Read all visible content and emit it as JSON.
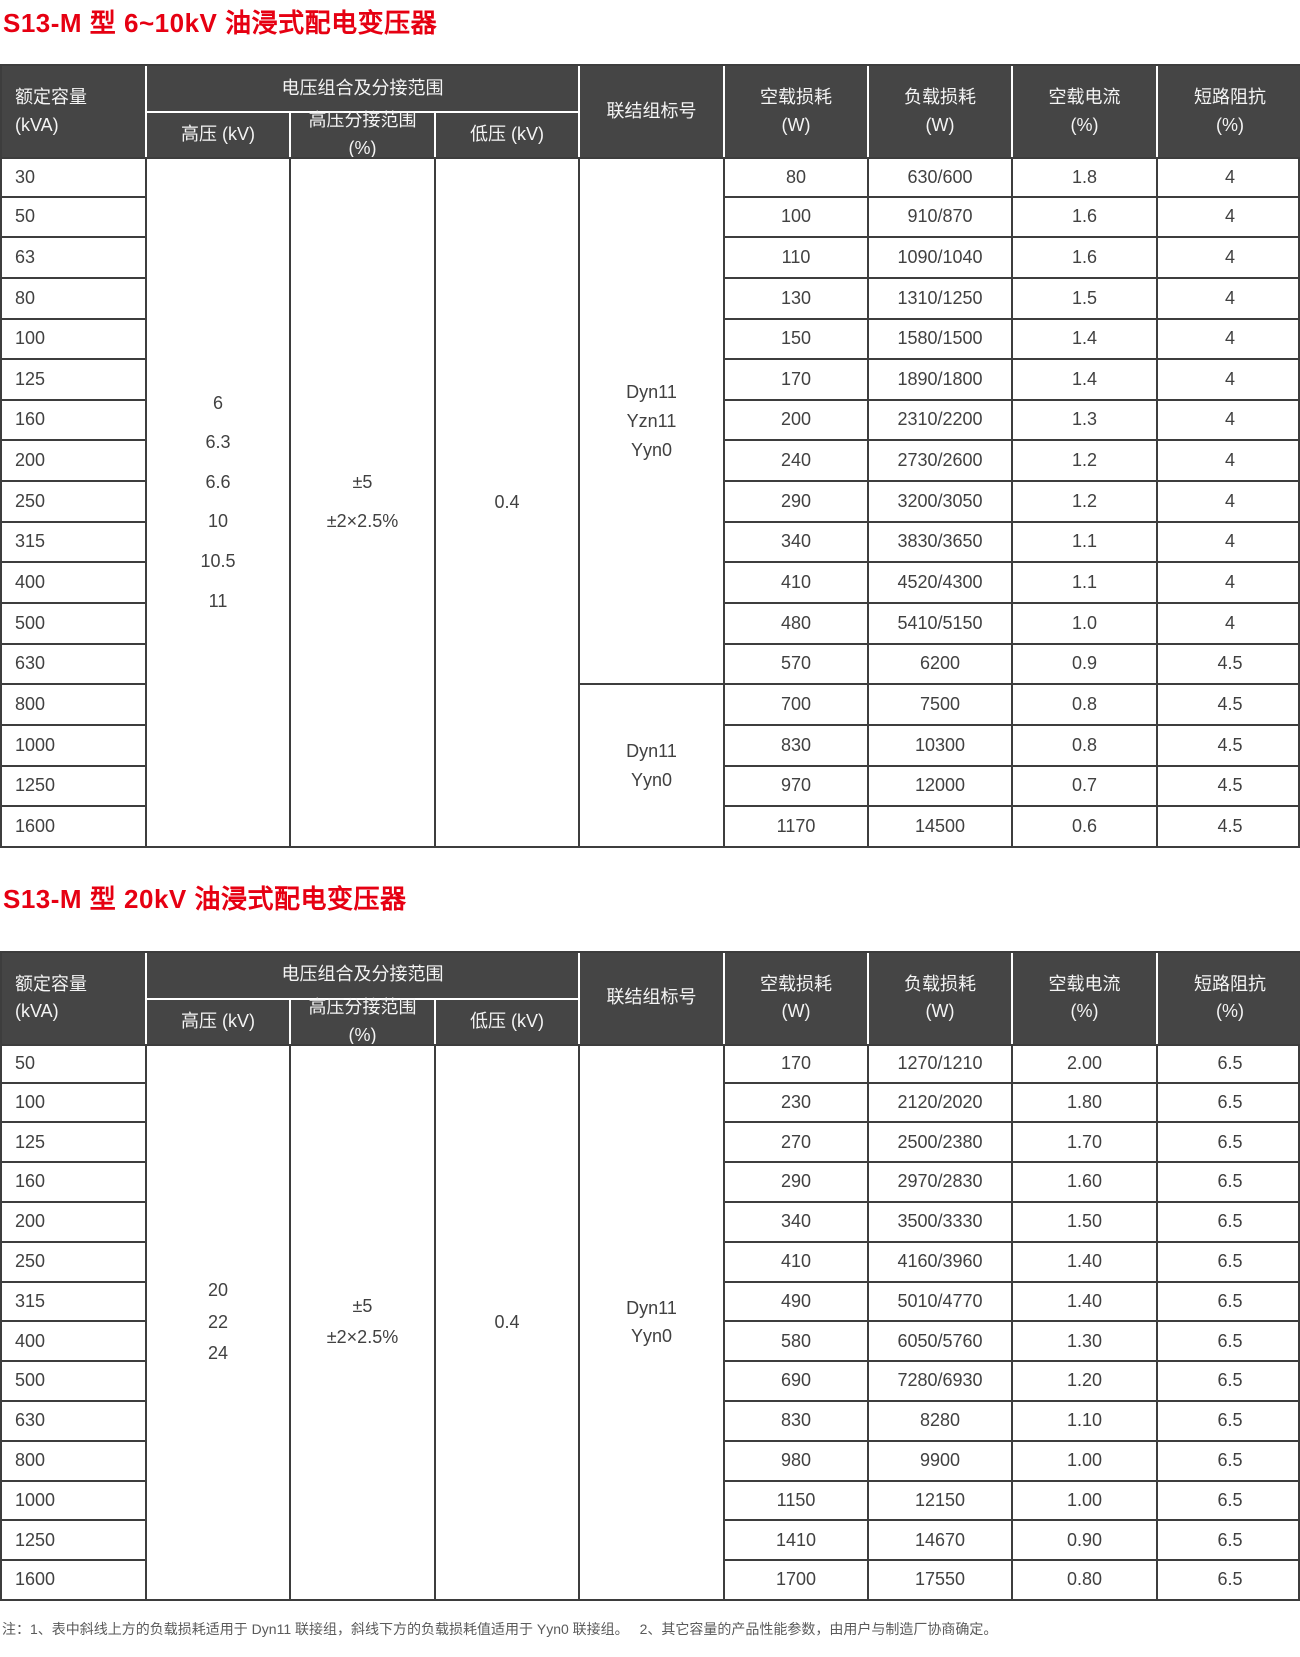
{
  "colors": {
    "title_red": "#e60012",
    "header_bg": "#454545",
    "border_dark": "#3d3d3d",
    "header_text": "#f4f4f4",
    "body_text": "#414141",
    "note_text": "#5a5a5a"
  },
  "note": "注：1、表中斜线上方的负载损耗适用于 Dyn11 联接组，斜线下方的负载损耗值适用于 Yyn0 联接组。　 2、其它容量的产品性能参数，由用户与制造厂协商确定。",
  "tables": [
    {
      "title": "S13-M 型 6~10kV 油浸式配电变压器",
      "header": {
        "capacity": [
          "额定容量",
          "(kVA)"
        ],
        "voltage_combo": [
          "电压组合及分接范围"
        ],
        "hv": [
          "高压 (kV)"
        ],
        "tap_range": [
          "高压分接范围",
          "(%)"
        ],
        "lv": [
          "低压 (kV)"
        ],
        "vector_group": [
          "联结组标号"
        ],
        "no_load_loss": [
          "空载损耗",
          "(W)"
        ],
        "load_loss": [
          "负载损耗",
          "(W)"
        ],
        "no_load_current": [
          "空载电流",
          "(%)"
        ],
        "impedance": [
          "短路阻抗",
          "(%)"
        ]
      },
      "hv_values": [
        "6",
        "6.3",
        "6.6",
        "10",
        "10.5",
        "11"
      ],
      "tap_values": [
        "±5",
        "±2×2.5%"
      ],
      "lv_value": [
        "0.4"
      ],
      "vector_groups": [
        {
          "lines": [
            "Dyn11",
            "Yzn11",
            "Yyn0"
          ],
          "rows": 13
        },
        {
          "lines": [
            "Dyn11",
            "Yyn0"
          ],
          "rows": 4
        }
      ],
      "rows": [
        [
          "30",
          "80",
          "630/600",
          "1.8",
          "4"
        ],
        [
          "50",
          "100",
          "910/870",
          "1.6",
          "4"
        ],
        [
          "63",
          "110",
          "1090/1040",
          "1.6",
          "4"
        ],
        [
          "80",
          "130",
          "1310/1250",
          "1.5",
          "4"
        ],
        [
          "100",
          "150",
          "1580/1500",
          "1.4",
          "4"
        ],
        [
          "125",
          "170",
          "1890/1800",
          "1.4",
          "4"
        ],
        [
          "160",
          "200",
          "2310/2200",
          "1.3",
          "4"
        ],
        [
          "200",
          "240",
          "2730/2600",
          "1.2",
          "4"
        ],
        [
          "250",
          "290",
          "3200/3050",
          "1.2",
          "4"
        ],
        [
          "315",
          "340",
          "3830/3650",
          "1.1",
          "4"
        ],
        [
          "400",
          "410",
          "4520/4300",
          "1.1",
          "4"
        ],
        [
          "500",
          "480",
          "5410/5150",
          "1.0",
          "4"
        ],
        [
          "630",
          "570",
          "6200",
          "0.9",
          "4.5"
        ],
        [
          "800",
          "700",
          "7500",
          "0.8",
          "4.5"
        ],
        [
          "1000",
          "830",
          "10300",
          "0.8",
          "4.5"
        ],
        [
          "1250",
          "970",
          "12000",
          "0.7",
          "4.5"
        ],
        [
          "1600",
          "1170",
          "14500",
          "0.6",
          "4.5"
        ]
      ]
    },
    {
      "title": "S13-M 型 20kV 油浸式配电变压器",
      "header": {
        "capacity": [
          "额定容量",
          "(kVA)"
        ],
        "voltage_combo": [
          "电压组合及分接范围"
        ],
        "hv": [
          "高压 (kV)"
        ],
        "tap_range": [
          "高压分接范围",
          "(%)"
        ],
        "lv": [
          "低压 (kV)"
        ],
        "vector_group": [
          "联结组标号"
        ],
        "no_load_loss": [
          "空载损耗",
          "(W)"
        ],
        "load_loss": [
          "负载损耗",
          "(W)"
        ],
        "no_load_current": [
          "空载电流",
          "(%)"
        ],
        "impedance": [
          "短路阻抗",
          "(%)"
        ]
      },
      "hv_values": [
        "20",
        "22",
        "24"
      ],
      "tap_values": [
        "±5",
        "±2×2.5%"
      ],
      "lv_value": [
        "0.4"
      ],
      "vector_groups": [
        {
          "lines": [
            "Dyn11",
            "Yyn0"
          ],
          "rows": 14
        }
      ],
      "rows": [
        [
          "50",
          "170",
          "1270/1210",
          "2.00",
          "6.5"
        ],
        [
          "100",
          "230",
          "2120/2020",
          "1.80",
          "6.5"
        ],
        [
          "125",
          "270",
          "2500/2380",
          "1.70",
          "6.5"
        ],
        [
          "160",
          "290",
          "2970/2830",
          "1.60",
          "6.5"
        ],
        [
          "200",
          "340",
          "3500/3330",
          "1.50",
          "6.5"
        ],
        [
          "250",
          "410",
          "4160/3960",
          "1.40",
          "6.5"
        ],
        [
          "315",
          "490",
          "5010/4770",
          "1.40",
          "6.5"
        ],
        [
          "400",
          "580",
          "6050/5760",
          "1.30",
          "6.5"
        ],
        [
          "500",
          "690",
          "7280/6930",
          "1.20",
          "6.5"
        ],
        [
          "630",
          "830",
          "8280",
          "1.10",
          "6.5"
        ],
        [
          "800",
          "980",
          "9900",
          "1.00",
          "6.5"
        ],
        [
          "1000",
          "1150",
          "12150",
          "1.00",
          "6.5"
        ],
        [
          "1250",
          "1410",
          "14670",
          "0.90",
          "6.5"
        ],
        [
          "1600",
          "1700",
          "17550",
          "0.80",
          "6.5"
        ]
      ]
    }
  ]
}
